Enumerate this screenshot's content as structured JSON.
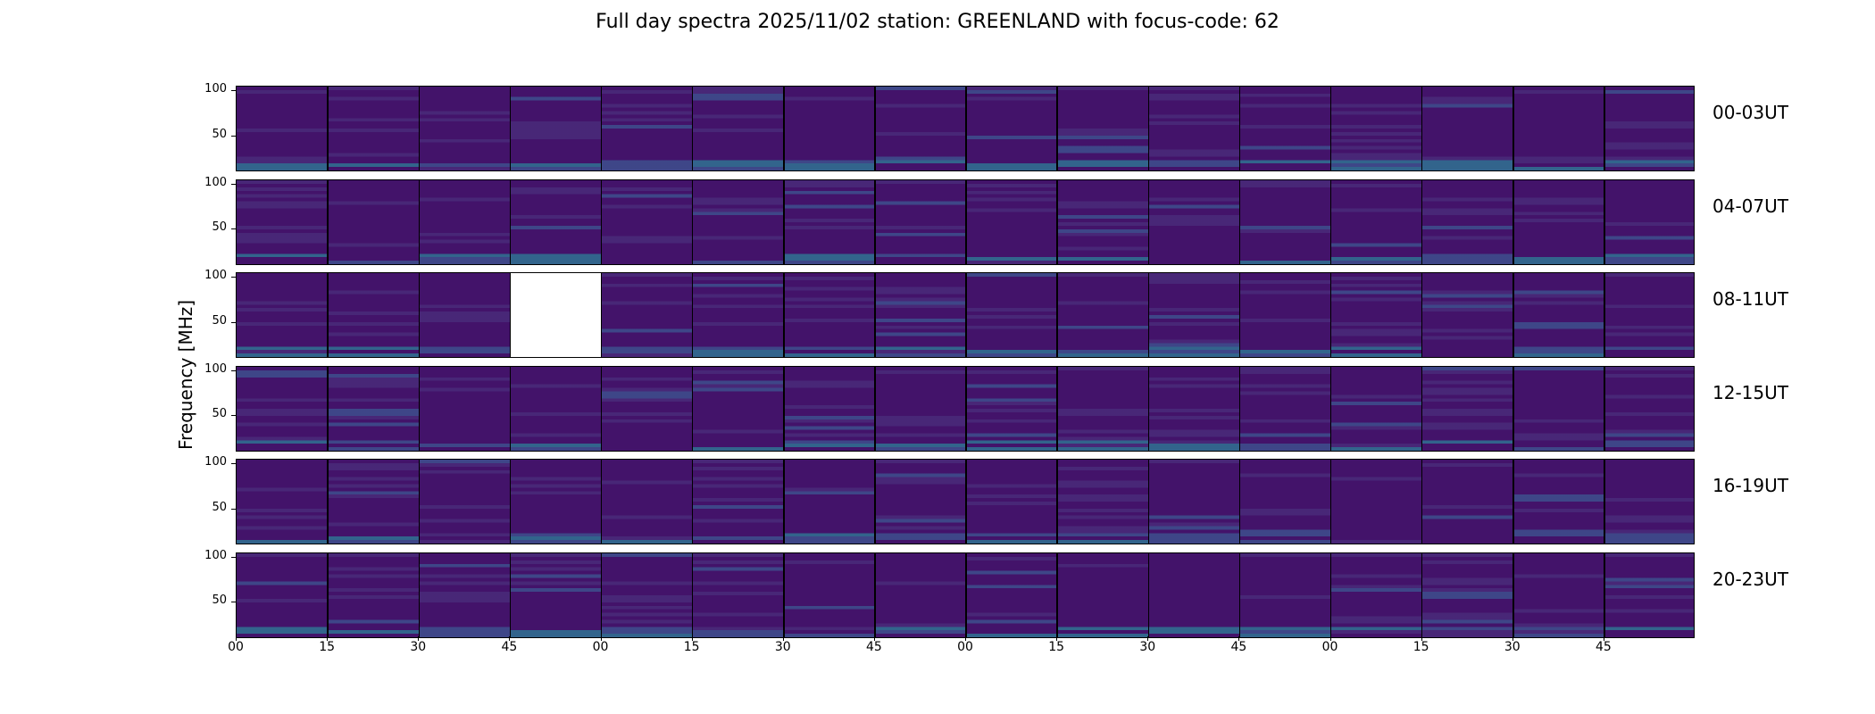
{
  "chart_data": {
    "type": "heatmap",
    "title": "Full day spectra 2025/11/02 station: GREENLAND with focus-code: 62",
    "ylabel": "Frequency [MHz]",
    "xlabel": "",
    "y_ticks": [
      "100",
      "50"
    ],
    "ylim": [
      10,
      105
    ],
    "x_ticks": [
      "00",
      "15",
      "30",
      "45",
      "00",
      "15",
      "30",
      "45",
      "00",
      "15",
      "30",
      "45",
      "00",
      "15",
      "30",
      "45"
    ],
    "colormap": [
      "#440154",
      "#482878",
      "#3e4989",
      "#31688e",
      "#26828e",
      "#1f9e89",
      "#35b779",
      "#6ece58",
      "#b5de2b",
      "#fde725"
    ],
    "panels_per_row": 16,
    "rows": [
      {
        "label": "00-03UT",
        "missing_panels": []
      },
      {
        "label": "04-07UT",
        "missing_panels": []
      },
      {
        "label": "08-11UT",
        "missing_panels": [
          3
        ]
      },
      {
        "label": "12-15UT",
        "missing_panels": []
      },
      {
        "label": "16-19UT",
        "missing_panels": []
      },
      {
        "label": "20-23UT",
        "missing_panels": []
      }
    ]
  }
}
